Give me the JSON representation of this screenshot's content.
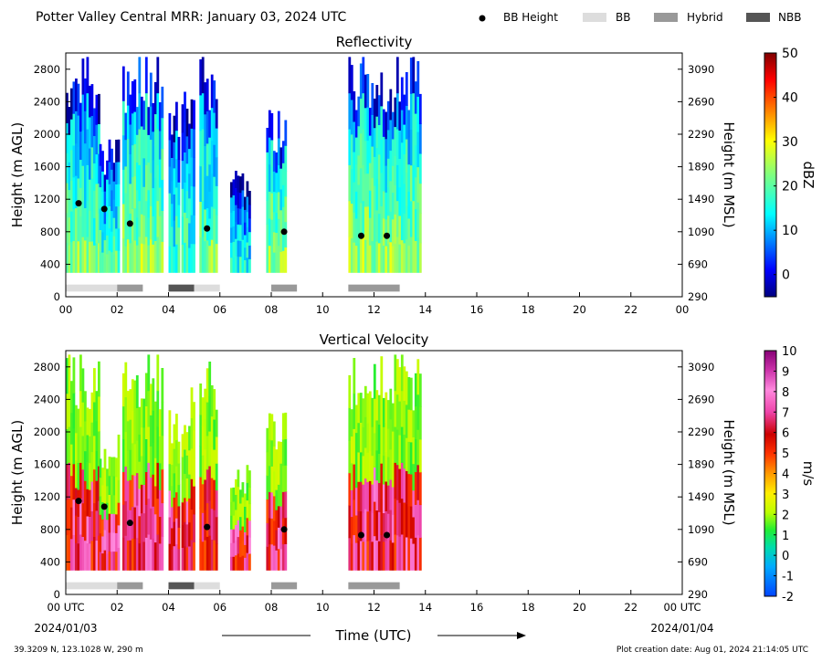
{
  "header": {
    "title": "Potter Valley Central MRR:  January 03, 2024 UTC",
    "legend": [
      {
        "label": "BB Height",
        "kind": "dot",
        "color": "#000000"
      },
      {
        "label": "BB",
        "kind": "box",
        "color": "#dddddd"
      },
      {
        "label": "Hybrid",
        "kind": "box",
        "color": "#999999"
      },
      {
        "label": "NBB",
        "kind": "box",
        "color": "#555555"
      }
    ]
  },
  "footer": {
    "location": "39.3209 N, 123.1028 W, 290 m",
    "creation": "Plot creation date: Aug 01, 2024 21:14:05 UTC",
    "xlabel": "Time (UTC)",
    "start_date": "2024/01/03",
    "end_date": "2024/01/04"
  },
  "chart_data": [
    {
      "type": "heatmap",
      "title": "Reflectivity",
      "ylabel": "Height (m AGL)",
      "ylabel_right": "Height (m MSL)",
      "xlabel": "Time (UTC)",
      "x_ticks": [
        "00",
        "02",
        "04",
        "06",
        "08",
        "10",
        "12",
        "14",
        "16",
        "18",
        "20",
        "22",
        "00"
      ],
      "xlim": [
        0,
        24
      ],
      "ylim": [
        0,
        3000
      ],
      "y_ticks": [
        0,
        400,
        800,
        1200,
        1600,
        2000,
        2400,
        2800
      ],
      "y_ticks_right": [
        290,
        690,
        1090,
        1490,
        1890,
        2290,
        2690,
        3090
      ],
      "colorbar": {
        "label": "dBZ",
        "range": [
          -5,
          50
        ],
        "ticks": [
          0,
          10,
          20,
          30,
          40,
          50
        ],
        "colormap": "jet"
      },
      "echo_periods": [
        {
          "start": 0.0,
          "end": 1.3,
          "top": 3000,
          "level": 12
        },
        {
          "start": 1.3,
          "end": 2.1,
          "top": 2000,
          "level": 10
        },
        {
          "start": 2.2,
          "end": 3.8,
          "top": 3000,
          "level": 14
        },
        {
          "start": 4.0,
          "end": 4.4,
          "top": 2400,
          "level": 8
        },
        {
          "start": 4.5,
          "end": 5.0,
          "top": 2600,
          "level": 9
        },
        {
          "start": 5.2,
          "end": 5.9,
          "top": 3000,
          "level": 12
        },
        {
          "start": 6.4,
          "end": 7.2,
          "top": 1600,
          "level": 6
        },
        {
          "start": 7.8,
          "end": 8.6,
          "top": 2300,
          "level": 14
        },
        {
          "start": 11.0,
          "end": 13.8,
          "top": 3000,
          "level": 14
        }
      ],
      "bb_height": [
        {
          "x": 0.5,
          "y": 1150
        },
        {
          "x": 1.5,
          "y": 1080
        },
        {
          "x": 2.5,
          "y": 900
        },
        {
          "x": 5.5,
          "y": 840
        },
        {
          "x": 8.5,
          "y": 800
        },
        {
          "x": 11.5,
          "y": 750
        },
        {
          "x": 12.5,
          "y": 750
        }
      ],
      "bb_type": [
        {
          "start": 0.0,
          "end": 2.0,
          "category": "BB"
        },
        {
          "start": 2.0,
          "end": 3.0,
          "category": "Hybrid"
        },
        {
          "start": 4.0,
          "end": 5.0,
          "category": "NBB"
        },
        {
          "start": 5.0,
          "end": 6.0,
          "category": "BB"
        },
        {
          "start": 8.0,
          "end": 9.0,
          "category": "Hybrid"
        },
        {
          "start": 11.0,
          "end": 13.0,
          "category": "Hybrid"
        }
      ]
    },
    {
      "type": "heatmap",
      "title": "Vertical Velocity",
      "ylabel": "Height (m AGL)",
      "ylabel_right": "Height (m MSL)",
      "xlabel": "Time (UTC)",
      "x_ticks": [
        "00 UTC",
        "02",
        "04",
        "06",
        "08",
        "10",
        "12",
        "14",
        "16",
        "18",
        "20",
        "22",
        "00 UTC"
      ],
      "xlim": [
        0,
        24
      ],
      "ylim": [
        0,
        3000
      ],
      "y_ticks": [
        0,
        400,
        800,
        1200,
        1600,
        2000,
        2400,
        2800
      ],
      "y_ticks_right": [
        290,
        690,
        1090,
        1490,
        1890,
        2290,
        2690,
        3090
      ],
      "colorbar": {
        "label": "m/s",
        "range": [
          -2,
          10
        ],
        "ticks": [
          -2,
          -1,
          0,
          1,
          2,
          3,
          4,
          5,
          6,
          7,
          8,
          9,
          10
        ],
        "colormap": "velocity"
      },
      "echo_periods": [
        {
          "start": 0.0,
          "end": 1.3,
          "top": 3000,
          "level": 1.5
        },
        {
          "start": 1.3,
          "end": 2.1,
          "top": 2000,
          "level": 1.5
        },
        {
          "start": 2.2,
          "end": 3.8,
          "top": 3000,
          "level": 1.5
        },
        {
          "start": 4.0,
          "end": 4.4,
          "top": 2400,
          "level": 1.5
        },
        {
          "start": 4.5,
          "end": 5.0,
          "top": 2600,
          "level": 1.5
        },
        {
          "start": 5.2,
          "end": 5.9,
          "top": 3000,
          "level": 1.5
        },
        {
          "start": 6.4,
          "end": 7.2,
          "top": 1600,
          "level": 1.5
        },
        {
          "start": 7.8,
          "end": 8.6,
          "top": 2300,
          "level": 1.5
        },
        {
          "start": 11.0,
          "end": 13.8,
          "top": 3000,
          "level": 1.5
        }
      ],
      "bb_height": [
        {
          "x": 0.5,
          "y": 1150
        },
        {
          "x": 1.5,
          "y": 1080
        },
        {
          "x": 2.5,
          "y": 880
        },
        {
          "x": 5.5,
          "y": 830
        },
        {
          "x": 8.5,
          "y": 800
        },
        {
          "x": 11.5,
          "y": 730
        },
        {
          "x": 12.5,
          "y": 730
        }
      ],
      "bb_type": [
        {
          "start": 0.0,
          "end": 2.0,
          "category": "BB"
        },
        {
          "start": 2.0,
          "end": 3.0,
          "category": "Hybrid"
        },
        {
          "start": 4.0,
          "end": 5.0,
          "category": "NBB"
        },
        {
          "start": 5.0,
          "end": 6.0,
          "category": "BB"
        },
        {
          "start": 8.0,
          "end": 9.0,
          "category": "Hybrid"
        },
        {
          "start": 11.0,
          "end": 13.0,
          "category": "Hybrid"
        }
      ]
    }
  ]
}
